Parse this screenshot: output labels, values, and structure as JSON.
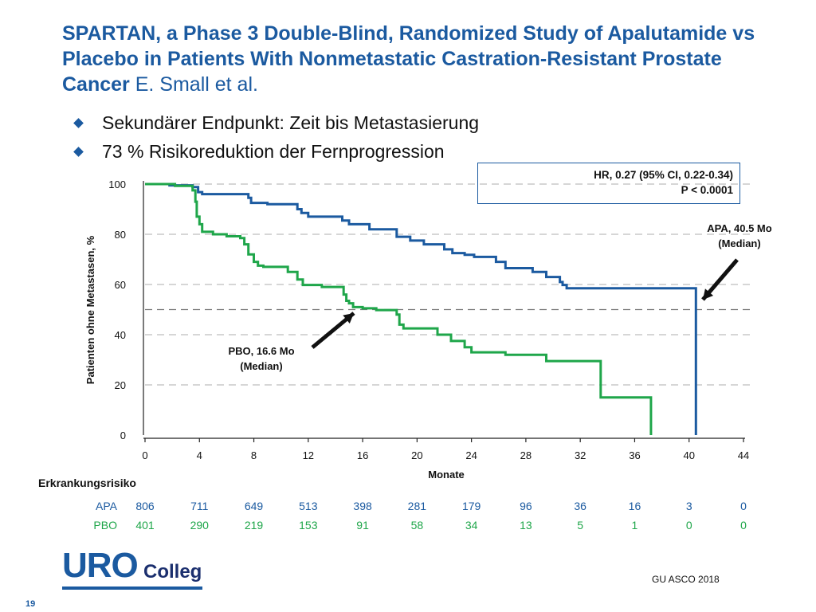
{
  "slide": {
    "title": "SPARTAN, a Phase 3 Double-Blind, Randomized Study of Apalutamide vs Placebo in Patients With Nonmetastatic Castration-Resistant Prostate Cancer",
    "author": "E. Small et al.",
    "bullets": [
      "Sekundärer Endpunkt: Zeit bis Metastasierung",
      "73 % Risikoreduktion der Fernprogression"
    ],
    "hr_line1": "HR, 0.27 (95% CI, 0.22-0.34)",
    "hr_line2": "P < 0.0001",
    "risk_title": "Erkrankungsrisiko",
    "logo_main": "URO",
    "logo_sub": "Colleg",
    "source": "GU ASCO 2018",
    "page_number": "19"
  },
  "colors": {
    "apa": "#1b5aa0",
    "pbo": "#1fa64a",
    "accent": "#1b5aa0"
  },
  "chart_data": {
    "type": "line",
    "xlabel": "Monate",
    "ylabel": "Patienten ohne Metastasen, %",
    "xlim": [
      0,
      44
    ],
    "ylim": [
      0,
      100
    ],
    "xticks": [
      0,
      4,
      8,
      12,
      16,
      20,
      24,
      28,
      32,
      36,
      40,
      44
    ],
    "yticks": [
      0,
      20,
      40,
      60,
      80,
      100
    ],
    "gridlines": [
      20,
      40,
      60,
      80,
      100
    ],
    "median_line": 50,
    "series": [
      {
        "name": "APA",
        "color": "#1b5aa0",
        "points": [
          [
            0,
            100
          ],
          [
            1.8,
            100
          ],
          [
            1.8,
            99.5
          ],
          [
            3.5,
            99.5
          ],
          [
            3.5,
            98.8
          ],
          [
            3.9,
            98.8
          ],
          [
            3.9,
            96.8
          ],
          [
            4.2,
            96.8
          ],
          [
            4.2,
            96
          ],
          [
            7.6,
            96
          ],
          [
            7.6,
            94.5
          ],
          [
            7.8,
            94.5
          ],
          [
            7.8,
            92.5
          ],
          [
            9,
            92.5
          ],
          [
            9,
            92
          ],
          [
            11.2,
            92
          ],
          [
            11.2,
            90
          ],
          [
            11.5,
            90
          ],
          [
            11.5,
            88.5
          ],
          [
            12,
            88.5
          ],
          [
            12,
            87
          ],
          [
            14.5,
            87
          ],
          [
            14.5,
            85.5
          ],
          [
            15,
            85.5
          ],
          [
            15,
            84
          ],
          [
            16.5,
            84
          ],
          [
            16.5,
            82
          ],
          [
            18.5,
            82
          ],
          [
            18.5,
            79
          ],
          [
            19.5,
            79
          ],
          [
            19.5,
            77.5
          ],
          [
            20.5,
            77.5
          ],
          [
            20.5,
            76
          ],
          [
            22,
            76
          ],
          [
            22,
            74
          ],
          [
            22.6,
            74
          ],
          [
            22.6,
            72.5
          ],
          [
            23.5,
            72.5
          ],
          [
            23.5,
            71.8
          ],
          [
            24.2,
            71.8
          ],
          [
            24.2,
            71
          ],
          [
            25.8,
            71
          ],
          [
            25.8,
            69
          ],
          [
            26.5,
            69
          ],
          [
            26.5,
            66.5
          ],
          [
            28.5,
            66.5
          ],
          [
            28.5,
            65
          ],
          [
            29.5,
            65
          ],
          [
            29.5,
            63
          ],
          [
            30.5,
            63
          ],
          [
            30.5,
            61
          ],
          [
            30.7,
            61
          ],
          [
            30.7,
            59.8
          ],
          [
            31,
            59.8
          ],
          [
            31,
            58.5
          ],
          [
            40.5,
            58.5
          ],
          [
            40.5,
            0
          ]
        ],
        "median": "APA, 40.5 Mo (Median)",
        "median_line1": "APA, 40.5 Mo",
        "median_line2": "(Median)"
      },
      {
        "name": "PBO",
        "color": "#1fa64a",
        "points": [
          [
            0,
            100
          ],
          [
            2.2,
            100
          ],
          [
            2.2,
            99.3
          ],
          [
            3.5,
            99.3
          ],
          [
            3.5,
            97.5
          ],
          [
            3.7,
            97.5
          ],
          [
            3.7,
            93
          ],
          [
            3.8,
            93
          ],
          [
            3.8,
            87
          ],
          [
            4,
            87
          ],
          [
            4,
            84
          ],
          [
            4.2,
            84
          ],
          [
            4.2,
            81
          ],
          [
            5,
            81
          ],
          [
            5,
            80
          ],
          [
            6,
            80
          ],
          [
            6,
            79.2
          ],
          [
            7,
            79.2
          ],
          [
            7,
            78.5
          ],
          [
            7.3,
            78.5
          ],
          [
            7.3,
            76
          ],
          [
            7.6,
            76
          ],
          [
            7.6,
            72
          ],
          [
            8,
            72
          ],
          [
            8,
            69
          ],
          [
            8.3,
            69
          ],
          [
            8.3,
            67.5
          ],
          [
            8.7,
            67.5
          ],
          [
            8.7,
            67
          ],
          [
            10.5,
            67
          ],
          [
            10.5,
            65
          ],
          [
            11.2,
            65
          ],
          [
            11.2,
            62
          ],
          [
            11.6,
            62
          ],
          [
            11.6,
            59.8
          ],
          [
            13,
            59.8
          ],
          [
            13,
            59
          ],
          [
            14.6,
            59
          ],
          [
            14.6,
            56
          ],
          [
            14.8,
            56
          ],
          [
            14.8,
            53.5
          ],
          [
            15,
            53.5
          ],
          [
            15,
            52.5
          ],
          [
            15.3,
            52.5
          ],
          [
            15.3,
            51
          ],
          [
            16,
            51
          ],
          [
            16,
            50.5
          ],
          [
            17,
            50.5
          ],
          [
            17,
            49.8
          ],
          [
            18.5,
            49.8
          ],
          [
            18.5,
            48
          ],
          [
            18.7,
            48
          ],
          [
            18.7,
            44
          ],
          [
            19,
            44
          ],
          [
            19,
            42.5
          ],
          [
            21.5,
            42.5
          ],
          [
            21.5,
            40
          ],
          [
            22.5,
            40
          ],
          [
            22.5,
            37.5
          ],
          [
            23.5,
            37.5
          ],
          [
            23.5,
            35
          ],
          [
            24,
            35
          ],
          [
            24,
            33
          ],
          [
            26.5,
            33
          ],
          [
            26.5,
            32
          ],
          [
            29.5,
            32
          ],
          [
            29.5,
            29.5
          ],
          [
            33.5,
            29.5
          ],
          [
            33.5,
            15
          ],
          [
            37.2,
            15
          ],
          [
            37.2,
            0
          ]
        ],
        "median": "PBO, 16.6 Mo (Median)",
        "median_line1": "PBO, 16.6 Mo",
        "median_line2": "(Median)"
      }
    ],
    "risk_table": {
      "title": "Erkrankungsrisiko",
      "rows": [
        {
          "label": "APA",
          "values": [
            "806",
            "711",
            "649",
            "513",
            "398",
            "281",
            "179",
            "96",
            "36",
            "16",
            "3",
            "0"
          ]
        },
        {
          "label": "PBO",
          "values": [
            "401",
            "290",
            "219",
            "153",
            "91",
            "58",
            "34",
            "13",
            "5",
            "1",
            "0",
            "0"
          ]
        }
      ]
    }
  }
}
